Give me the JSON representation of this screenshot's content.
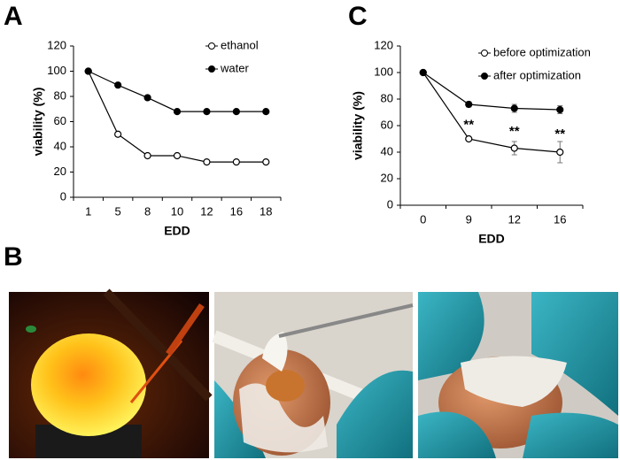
{
  "panel_labels": [
    "A",
    "B",
    "C"
  ],
  "chart_data": [
    {
      "type": "line",
      "xlabel": "EDD",
      "ylabel": "viability (%)",
      "categories": [
        "1",
        "5",
        "8",
        "10",
        "12",
        "16",
        "18"
      ],
      "series": [
        {
          "name": "ethanol",
          "color": "#000000",
          "marker": "open",
          "values": [
            100,
            50,
            33,
            33,
            28,
            28,
            28
          ]
        },
        {
          "name": "water",
          "color": "#000000",
          "marker": "filled",
          "values": [
            100,
            89,
            79,
            68,
            68,
            68,
            68
          ]
        }
      ],
      "ylim": [
        0,
        120
      ],
      "yticks": [
        0,
        20,
        40,
        60,
        80,
        100,
        120
      ],
      "legend": "upper right"
    },
    {
      "type": "line",
      "xlabel": "EDD",
      "ylabel": "viability (%)",
      "categories": [
        "0",
        "9",
        "12",
        "16"
      ],
      "series": [
        {
          "name": "before optimization",
          "color": "#000000",
          "marker": "open",
          "values": [
            100,
            50,
            43,
            40
          ],
          "errors": [
            0,
            0,
            5,
            8
          ]
        },
        {
          "name": "after optimization",
          "color": "#000000",
          "marker": "filled",
          "values": [
            100,
            76,
            73,
            72
          ],
          "errors": [
            0,
            2,
            3,
            3
          ]
        }
      ],
      "annotations": [
        null,
        "**",
        "**",
        "**"
      ],
      "ylim": [
        0,
        120
      ],
      "yticks": [
        0,
        20,
        40,
        60,
        80,
        100,
        120
      ],
      "legend": "upper right"
    }
  ]
}
